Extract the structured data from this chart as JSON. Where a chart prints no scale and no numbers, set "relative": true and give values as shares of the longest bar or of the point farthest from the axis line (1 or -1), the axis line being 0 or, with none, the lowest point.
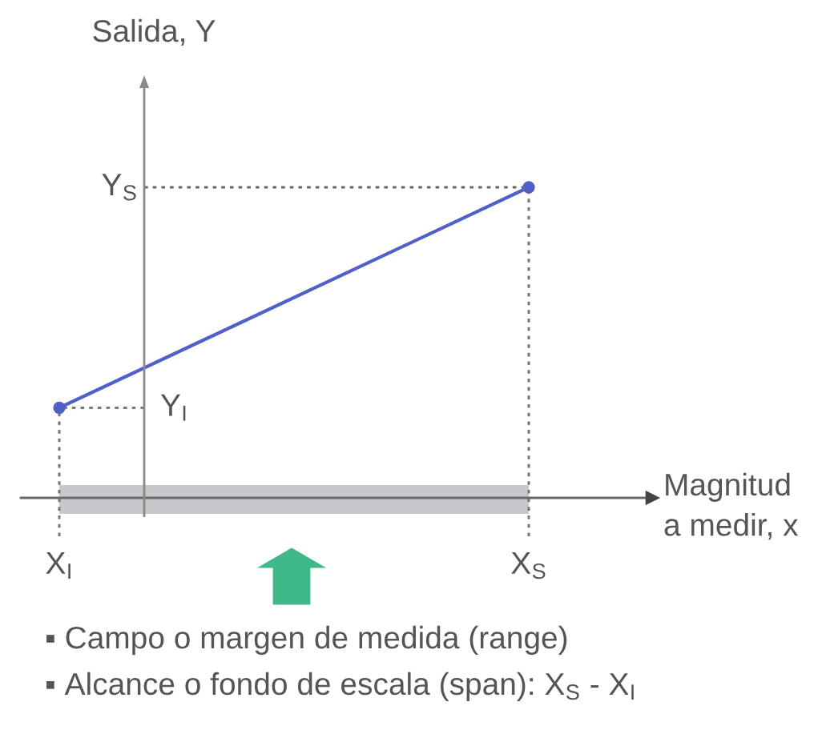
{
  "chart_data": {
    "type": "line",
    "xlabel": "Magnitud\na medir, x",
    "ylabel": "Salida, Y",
    "categories": [
      "X$_{I}$",
      "X$_{S}$"
    ],
    "series": [
      {
        "color": "#5060c8",
        "values": [
          0.29,
          1
        ]
      }
    ],
    "relative": true,
    "marker": "circle",
    "line_style": "solid",
    "grid": false,
    "tick_labels": "x",
    "bands": [
      {
        "axis": "x",
        "from": "X$_{I}$",
        "to": "X$_{S}$",
        "color": "#c8c8cc"
      }
    ],
    "ref_lines": [
      {
        "axis": "y",
        "value": 1,
        "label": "Y$_{S}$",
        "color": "#666666",
        "line_style": "dotted"
      },
      {
        "axis": "y",
        "value": 0.29,
        "label": "Y$_{I}$",
        "color": "#777777",
        "line_style": "dotted"
      },
      {
        "axis": "x",
        "value": "X$_{I}$",
        "color": "#777777",
        "line_style": "dotted"
      },
      {
        "axis": "x",
        "value": "X$_{S}$",
        "color": "#777777",
        "line_style": "dotted"
      }
    ],
    "annotations": [
      "▪ Campo o margen de medida (range)",
      "▪ Alcance o fondo de escala (span): X$_{S}$ - X$_{I}$"
    ]
  }
}
